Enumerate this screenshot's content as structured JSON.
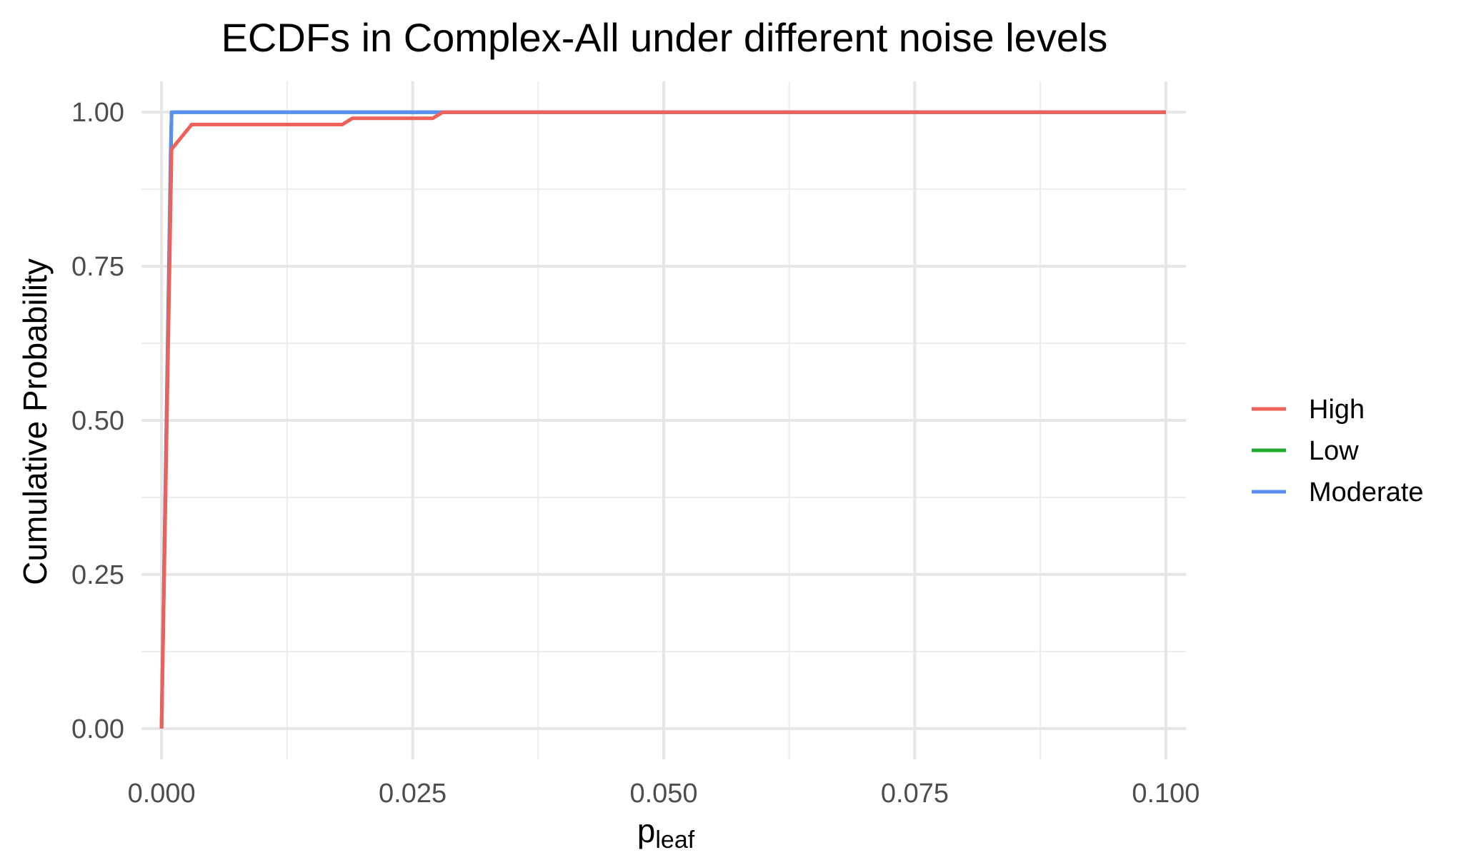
{
  "chart_data": {
    "type": "line",
    "title": "ECDFs in Complex-All under different noise levels",
    "xlabel_main": "p",
    "xlabel_sub": "leaf",
    "ylabel": "Cumulative Probability",
    "xlim": [
      -0.002,
      0.102
    ],
    "ylim": [
      -0.05,
      1.05
    ],
    "x_ticks": [
      0.0,
      0.025,
      0.05,
      0.075,
      0.1
    ],
    "x_tick_labels": [
      "0.000",
      "0.025",
      "0.050",
      "0.075",
      "0.100"
    ],
    "x_minor_ticks": [
      0.0125,
      0.0375,
      0.0625,
      0.0875
    ],
    "y_ticks": [
      0.0,
      0.25,
      0.5,
      0.75,
      1.0
    ],
    "y_tick_labels": [
      "0.00",
      "0.25",
      "0.50",
      "0.75",
      "1.00"
    ],
    "y_minor_ticks": [
      0.125,
      0.375,
      0.625,
      0.875
    ],
    "grid": true,
    "legend_position": "right",
    "series": [
      {
        "name": "Low",
        "color": "#1faa2e",
        "x": [
          0.0,
          0.001,
          0.1
        ],
        "y": [
          0.0,
          1.0,
          1.0
        ]
      },
      {
        "name": "Moderate",
        "color": "#5a8ef0",
        "x": [
          0.0,
          0.0009,
          0.001,
          0.028,
          0.1
        ],
        "y": [
          0.0,
          0.93,
          1.0,
          1.0,
          1.0
        ]
      },
      {
        "name": "High",
        "color": "#ee6159",
        "x": [
          0.0,
          0.001,
          0.003,
          0.018,
          0.019,
          0.027,
          0.028,
          0.1
        ],
        "y": [
          0.0,
          0.94,
          0.98,
          0.98,
          0.99,
          0.99,
          1.0,
          1.0
        ]
      }
    ],
    "legend_order": [
      "High",
      "Low",
      "Moderate"
    ]
  }
}
